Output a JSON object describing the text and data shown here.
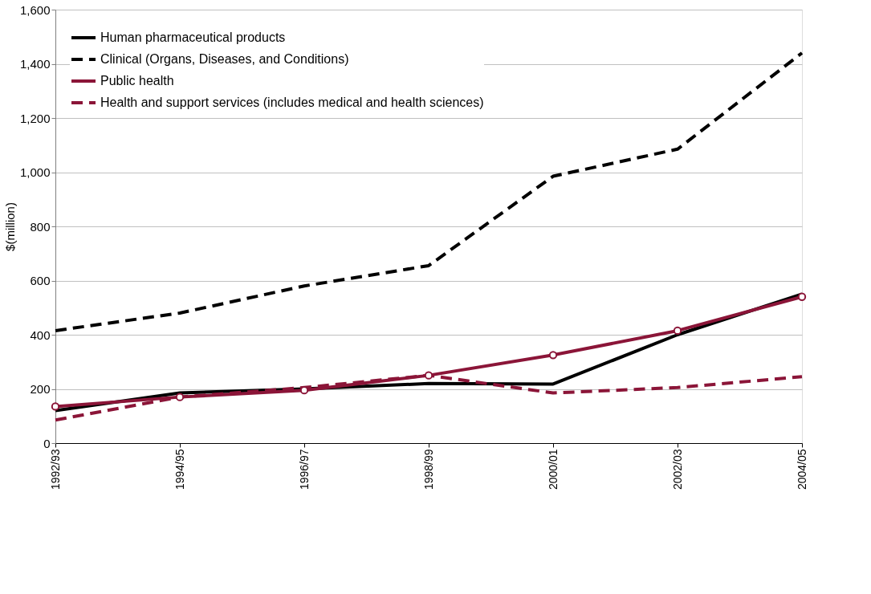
{
  "chart_data": {
    "type": "line",
    "ylabel": "$(million)",
    "categories": [
      "1992/93",
      "1994/95",
      "1996/97",
      "1998/99",
      "2000/01",
      "2002/03",
      "2004/05"
    ],
    "series": [
      {
        "name": "Human pharmaceutical products",
        "color": "#000000",
        "line_style": "solid",
        "marker": "none",
        "values": [
          120,
          185,
          200,
          220,
          218,
          400,
          550
        ]
      },
      {
        "name": "Clinical (Organs, Diseases, and Conditions)",
        "color": "#000000",
        "line_style": "dashed",
        "marker": "none",
        "values": [
          415,
          480,
          580,
          655,
          985,
          1085,
          1440
        ]
      },
      {
        "name": "Public health",
        "color": "#8b1538",
        "line_style": "solid",
        "marker": "circle",
        "values": [
          135,
          170,
          195,
          250,
          325,
          415,
          540
        ]
      },
      {
        "name": "Health and support services (includes medical and health sciences)",
        "color": "#8b1538",
        "line_style": "dashed",
        "marker": "none",
        "values": [
          85,
          170,
          205,
          250,
          185,
          205,
          245
        ]
      }
    ],
    "ylim": [
      0,
      1600
    ],
    "yticks": [
      0,
      200,
      400,
      600,
      800,
      {
        "value": 1000,
        "label": "1,000"
      },
      {
        "value": 1200,
        "label": "1,200"
      },
      {
        "value": 1400,
        "label": "1,400"
      },
      {
        "value": 1600,
        "label": "1,600"
      }
    ],
    "grid": "y",
    "legend": "top left"
  }
}
